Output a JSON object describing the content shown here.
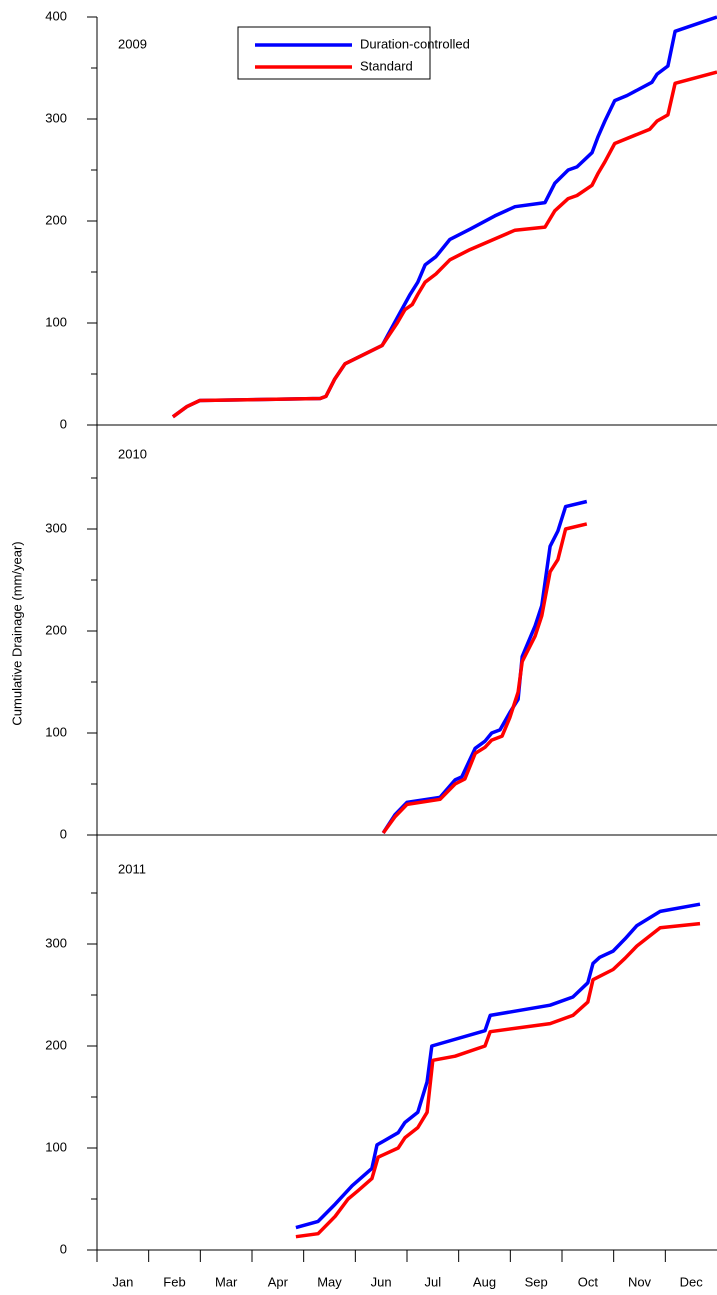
{
  "chart_data": [
    {
      "type": "line",
      "label": "2009",
      "xlim": [
        0,
        12
      ],
      "ylim": [
        0,
        400
      ],
      "yticks": [
        0,
        100,
        200,
        300,
        400
      ],
      "legend": "top-center",
      "series": [
        {
          "name": "Duration-controlled",
          "color": "#0000ff",
          "x": [
            1.47,
            1.74,
            1.99,
            4.32,
            4.43,
            4.6,
            4.8,
            5.52,
            5.81,
            6.06,
            6.21,
            6.35,
            6.56,
            6.83,
            7.22,
            7.7,
            8.09,
            8.67,
            8.86,
            9.12,
            9.29,
            9.58,
            9.7,
            9.83,
            10.02,
            10.26,
            10.74,
            10.84,
            11.05,
            11.19,
            12.0
          ],
          "values": [
            8,
            18,
            24,
            26,
            28,
            45,
            60,
            78,
            105,
            128,
            140,
            157,
            165,
            182,
            192,
            205,
            214,
            218,
            237,
            250,
            253,
            267,
            283,
            298,
            318,
            323,
            336,
            344,
            352,
            386,
            400
          ]
        },
        {
          "name": "Standard",
          "color": "#ff0000",
          "x": [
            1.47,
            1.74,
            1.99,
            4.32,
            4.43,
            4.6,
            4.8,
            5.52,
            5.81,
            5.96,
            6.1,
            6.21,
            6.35,
            6.56,
            6.83,
            7.22,
            8.09,
            8.67,
            8.86,
            9.12,
            9.29,
            9.58,
            9.7,
            9.83,
            10.02,
            10.7,
            10.84,
            11.05,
            11.19,
            12.0
          ],
          "values": [
            8,
            18,
            24,
            26,
            28,
            45,
            60,
            78,
            100,
            113,
            118,
            128,
            140,
            148,
            162,
            172,
            191,
            194,
            210,
            222,
            225,
            235,
            247,
            258,
            276,
            290,
            298,
            304,
            335,
            346
          ]
        }
      ]
    },
    {
      "type": "line",
      "label": "2010",
      "ylabel": "Cumulative Drainage (mm/year)",
      "xlim": [
        0,
        12
      ],
      "ylim": [
        0,
        400
      ],
      "yticks": [
        0,
        100,
        200,
        300
      ],
      "series": [
        {
          "name": "Duration-controlled",
          "color": "#0000ff",
          "x": [
            5.54,
            5.77,
            6.0,
            6.64,
            6.93,
            7.06,
            7.32,
            7.51,
            7.64,
            7.8,
            7.99,
            8.15,
            8.23,
            8.48,
            8.61,
            8.77,
            8.92,
            9.07,
            9.48
          ],
          "values": [
            2,
            20,
            32,
            37,
            54,
            57,
            85,
            92,
            100,
            103,
            120,
            133,
            175,
            205,
            225,
            283,
            298,
            322,
            327
          ]
        },
        {
          "name": "Standard",
          "color": "#ff0000",
          "x": [
            5.54,
            5.77,
            6.0,
            6.64,
            6.93,
            7.12,
            7.32,
            7.51,
            7.64,
            7.84,
            7.99,
            8.15,
            8.23,
            8.48,
            8.61,
            8.77,
            8.92,
            9.07,
            9.48
          ],
          "values": [
            2,
            18,
            30,
            35,
            50,
            55,
            80,
            86,
            93,
            97,
            115,
            140,
            170,
            195,
            215,
            258,
            270,
            300,
            305
          ]
        }
      ]
    },
    {
      "type": "line",
      "label": "2011",
      "xlim": [
        0,
        12
      ],
      "ylim": [
        0,
        400
      ],
      "yticks": [
        0,
        100,
        200,
        300
      ],
      "categories": [
        "Jan",
        "Feb",
        "Mar",
        "Apr",
        "May",
        "Jun",
        "Jul",
        "Aug",
        "Sep",
        "Oct",
        "Nov",
        "Dec"
      ],
      "series": [
        {
          "name": "Duration-controlled",
          "color": "#0000ff",
          "x": [
            3.85,
            4.28,
            4.61,
            4.94,
            5.32,
            5.42,
            5.83,
            5.96,
            6.21,
            6.39,
            6.48,
            7.51,
            7.61,
            8.77,
            9.21,
            9.5,
            9.6,
            9.73,
            9.99,
            10.22,
            10.45,
            10.9,
            11.67
          ],
          "values": [
            22,
            28,
            45,
            63,
            80,
            103,
            115,
            125,
            135,
            165,
            200,
            215,
            230,
            240,
            248,
            262,
            281,
            287,
            293,
            305,
            318,
            332,
            339
          ]
        },
        {
          "name": "Standard",
          "color": "#ff0000",
          "x": [
            3.85,
            4.28,
            4.61,
            4.86,
            5.05,
            5.32,
            5.44,
            5.83,
            5.96,
            6.21,
            6.39,
            6.5,
            6.93,
            7.51,
            7.61,
            8.77,
            9.21,
            9.5,
            9.6,
            9.99,
            10.22,
            10.45,
            10.9,
            11.67
          ],
          "values": [
            13,
            16,
            33,
            50,
            58,
            70,
            91,
            100,
            110,
            120,
            135,
            186,
            190,
            200,
            214,
            222,
            230,
            243,
            265,
            275,
            286,
            298,
            316,
            320
          ]
        }
      ]
    }
  ]
}
